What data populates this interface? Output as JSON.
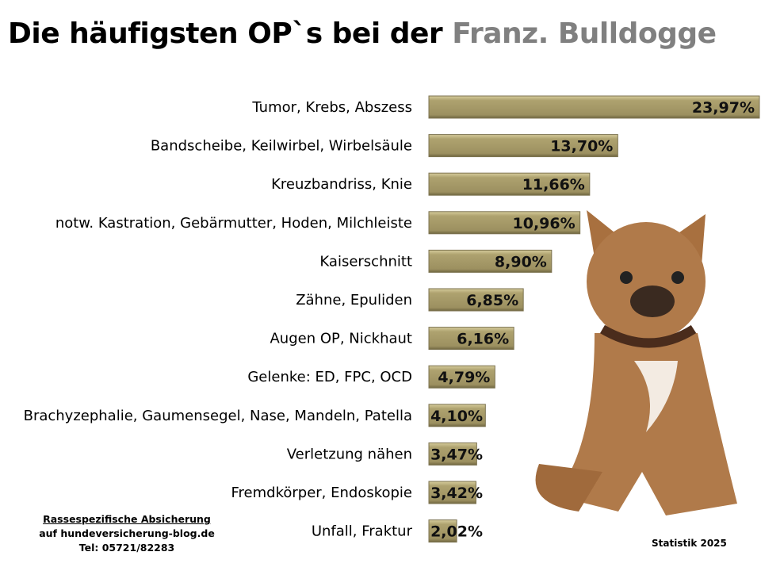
{
  "title": {
    "part1": "Die häufigsten OP`s bei der ",
    "part2": "Franz. Bulldogge"
  },
  "footer": {
    "line1": "Rassespezifische  Absicherung",
    "line2": "auf hundeversicherung-blog.de",
    "line3": "Tel: 05721/82283"
  },
  "source_note": "Statistik 2025",
  "colors": {
    "bar": "#a59a68",
    "title_accent": "#808080",
    "dog": "#b07a4a"
  },
  "chart_data": {
    "type": "bar",
    "orientation": "horizontal",
    "categories": [
      "Tumor, Krebs, Abszess",
      "Bandscheibe, Keilwirbel, Wirbelsäule",
      "Kreuzbandriss, Knie",
      "notw. Kastration, Gebärmutter, Hoden, Milchleiste",
      "Kaiserschnitt",
      "Zähne, Epuliden",
      "Augen OP, Nickhaut",
      "Gelenke: ED, FPC, OCD",
      "Brachyzephalie, Gaumensegel, Nase, Mandeln, Patella",
      "Verletzung nähen",
      "Fremdkörper, Endoskopie",
      "Unfall, Fraktur"
    ],
    "values": [
      23.97,
      13.7,
      11.66,
      10.96,
      8.9,
      6.85,
      6.16,
      4.79,
      4.1,
      3.47,
      3.42,
      2.02
    ],
    "data_labels": [
      "23,97%",
      "13,70%",
      "11,66%",
      "10,96%",
      "8,90%",
      "6,85%",
      "6,16%",
      "4,79%",
      "4,10%",
      "3,47%",
      "3,42%",
      "2,02%"
    ],
    "unit": "%",
    "grid": false,
    "legend": "none"
  }
}
